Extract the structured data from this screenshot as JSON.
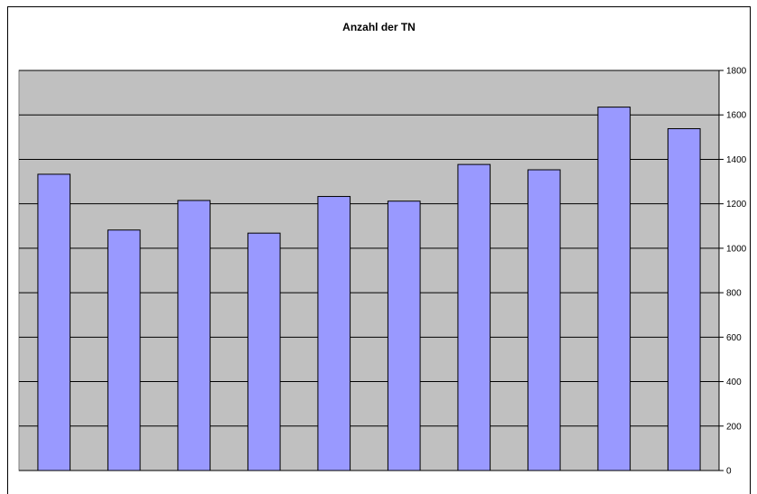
{
  "chart_data": {
    "type": "bar",
    "title": "Anzahl der TN",
    "xlabel": "",
    "ylabel": "",
    "categories": [
      "",
      "",
      "",
      "",
      "",
      "",
      "",
      "",
      "",
      ""
    ],
    "values": [
      1333,
      1082,
      1215,
      1068,
      1233,
      1212,
      1377,
      1353,
      1635,
      1538
    ],
    "ylim": [
      0,
      1800
    ],
    "yticks": [
      0,
      200,
      400,
      600,
      800,
      1000,
      1200,
      1400,
      1600,
      1800
    ],
    "y_axis_position": "right",
    "grid": true,
    "legend": "none",
    "colors": {
      "bar_fill": "#9999ff",
      "bar_stroke": "#000000",
      "plot_background": "#c0c0c0",
      "gridline": "#000000"
    }
  }
}
